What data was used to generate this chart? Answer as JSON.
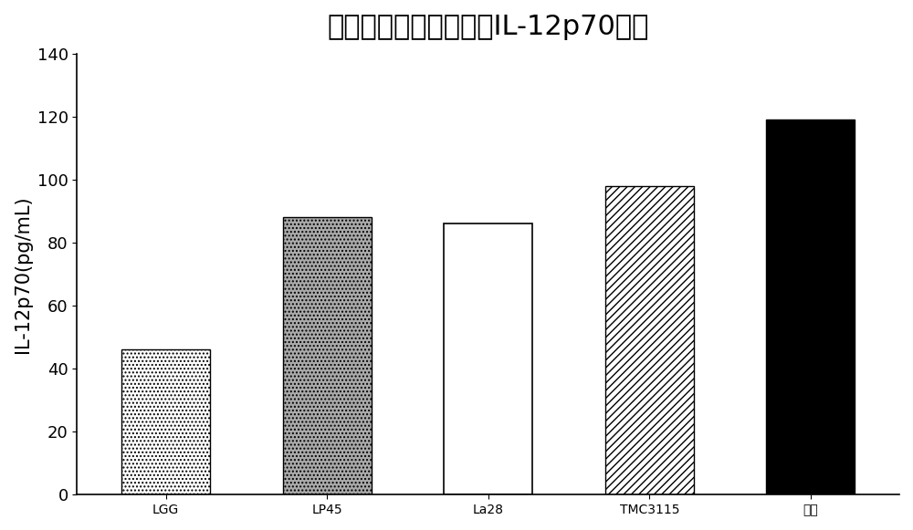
{
  "title": "乳酸菌活菌刺激白介素IL-12p70分泌",
  "categories": [
    "LGG",
    "LP45",
    "La28",
    "TMC3115",
    "复合"
  ],
  "values": [
    46,
    88,
    86,
    98,
    119
  ],
  "ylabel": "IL-12p70(pg/mL)",
  "ylim": [
    0,
    140
  ],
  "yticks": [
    0,
    20,
    40,
    60,
    80,
    100,
    120,
    140
  ],
  "background_color": "#ffffff",
  "title_fontsize": 22,
  "axis_label_fontsize": 15,
  "tick_fontsize": 13,
  "bar_width": 0.55,
  "lgg_facecolor": "#ffffff",
  "lp45_facecolor": "#aaaaaa",
  "la28_facecolor": "#ffffff",
  "tmc3115_facecolor": "#ffffff",
  "fuhe_facecolor": "#000000"
}
